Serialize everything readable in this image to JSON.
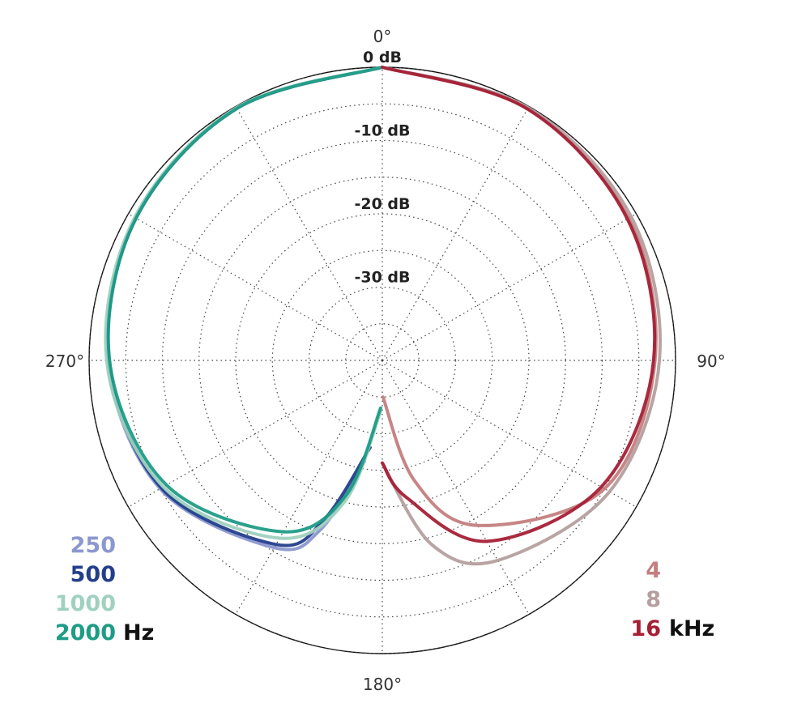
{
  "chart_data": {
    "type": "polar-line",
    "radial_axis": {
      "unit": "dB",
      "min": -40,
      "max": 0,
      "rings": [
        0,
        -5,
        -10,
        -15,
        -20,
        -25,
        -30,
        -35
      ],
      "ring_labels": [
        {
          "value": 0,
          "text": "0 dB"
        },
        {
          "value": -10,
          "text": "-10 dB"
        },
        {
          "value": -20,
          "text": "-20 dB"
        },
        {
          "value": -30,
          "text": "-30 dB"
        }
      ]
    },
    "angular_axis": {
      "direction": "clockwise",
      "zero": "top",
      "spokes_deg": [
        0,
        30,
        60,
        90,
        120,
        150,
        180,
        210,
        240,
        270,
        300,
        330
      ],
      "labels": [
        {
          "angle": 0,
          "text": "0°"
        },
        {
          "angle": 90,
          "text": "90°"
        },
        {
          "angle": 180,
          "text": "180°"
        },
        {
          "angle": 270,
          "text": "270°"
        }
      ]
    },
    "grid": true,
    "legend_left": {
      "placement": "bottom-left",
      "unit": "Hz",
      "entries": [
        {
          "text": "250",
          "color": "#8b97cf"
        },
        {
          "text": "500",
          "color": "#233e8b"
        },
        {
          "text": "1000",
          "color": "#9fd1bf"
        },
        {
          "text": "2000",
          "color": "#1e9c86"
        }
      ]
    },
    "legend_right": {
      "placement": "bottom-right",
      "unit": "kHz",
      "entries": [
        {
          "text": "4",
          "color": "#c47e7e"
        },
        {
          "text": "8",
          "color": "#b59f9f"
        },
        {
          "text": "16",
          "color": "#a51f35"
        }
      ]
    },
    "series": [
      {
        "name": "250",
        "color": "#8b97cf",
        "half": "left",
        "angles_deg": [
          0,
          30,
          60,
          90,
          120,
          150,
          160,
          170
        ],
        "values_db": [
          0,
          -0.3,
          -1.2,
          -2.6,
          -5,
          -10.5,
          -15.5,
          -26
        ]
      },
      {
        "name": "500",
        "color": "#233e8b",
        "half": "left",
        "angles_deg": [
          0,
          30,
          60,
          90,
          120,
          150,
          160,
          172
        ],
        "values_db": [
          0,
          -0.3,
          -1.2,
          -2.7,
          -5.2,
          -11,
          -17,
          -28
        ]
      },
      {
        "name": "1000",
        "color": "#9fd1bf",
        "half": "left",
        "angles_deg": [
          0,
          30,
          60,
          90,
          120,
          150,
          165,
          178
        ],
        "values_db": [
          0,
          -0.2,
          -1.0,
          -2.4,
          -5.5,
          -12,
          -20,
          -33
        ]
      },
      {
        "name": "2000",
        "color": "#1e9c86",
        "half": "left",
        "angles_deg": [
          0,
          30,
          60,
          90,
          120,
          150,
          165,
          178
        ],
        "values_db": [
          0,
          -0.3,
          -1.2,
          -2.8,
          -6,
          -13,
          -21,
          -33.5
        ]
      },
      {
        "name": "4",
        "color": "#c47e7e",
        "half": "right",
        "angles_deg": [
          0,
          30,
          60,
          90,
          120,
          150,
          165,
          179
        ],
        "values_db": [
          0,
          -0.3,
          -1.2,
          -2.8,
          -5,
          -14,
          -23,
          -35
        ]
      },
      {
        "name": "8",
        "color": "#b59f9f",
        "half": "right",
        "angles_deg": [
          0,
          30,
          60,
          90,
          120,
          150,
          165,
          180
        ],
        "values_db": [
          0,
          -0.2,
          -0.8,
          -2.2,
          -4.2,
          -8.5,
          -14,
          -26
        ]
      },
      {
        "name": "16",
        "color": "#a51f35",
        "half": "right",
        "angles_deg": [
          0,
          30,
          60,
          90,
          120,
          150,
          170,
          180
        ],
        "values_db": [
          0,
          -0.4,
          -1.4,
          -3.0,
          -5.5,
          -11.5,
          -21,
          -26
        ]
      }
    ]
  }
}
